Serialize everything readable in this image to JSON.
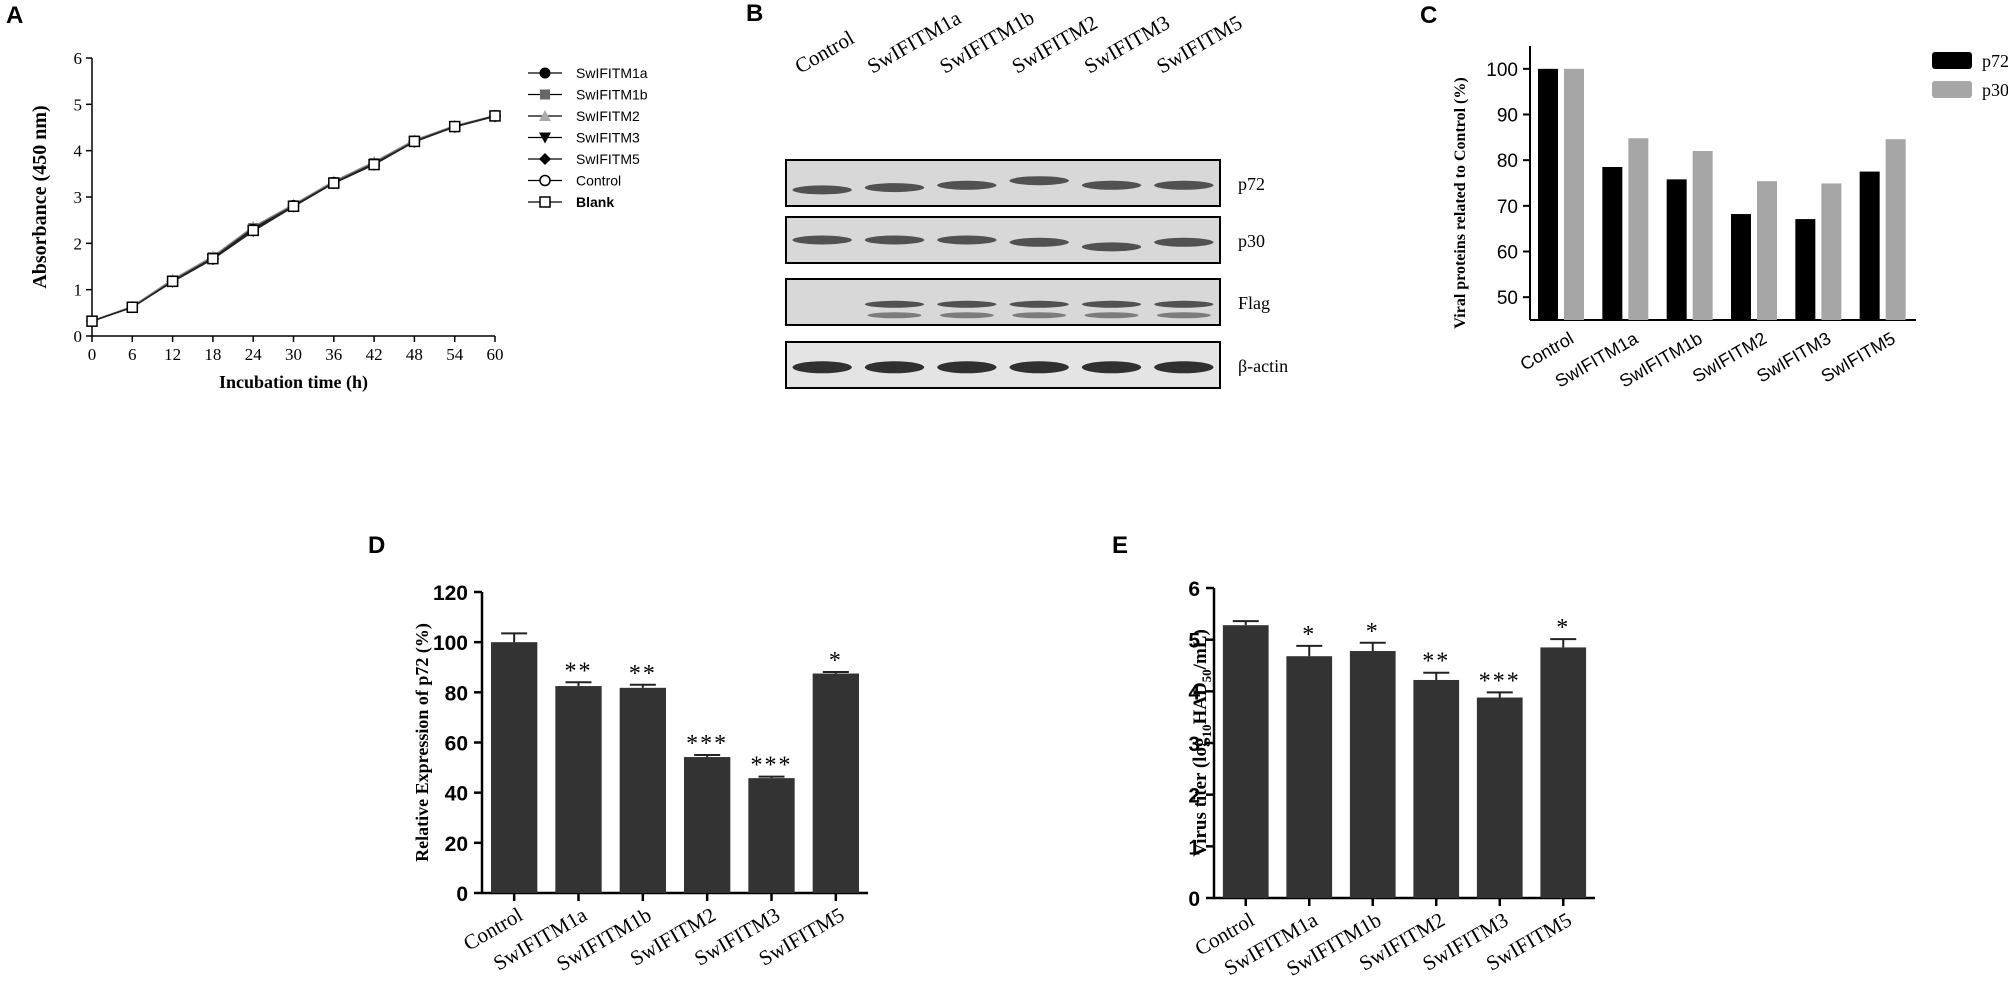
{
  "panel_labels": [
    "A",
    "B",
    "C",
    "D",
    "E"
  ],
  "chart_data": [
    {
      "panel": "A",
      "type": "line",
      "title": "",
      "xlabel": "Incubation time (h)",
      "ylabel": "Absorbance (450 nm)",
      "xlim": [
        0,
        60
      ],
      "ylim": [
        0,
        6
      ],
      "x_ticks": [
        0,
        6,
        12,
        18,
        24,
        30,
        36,
        42,
        48,
        54,
        60
      ],
      "y_ticks": [
        0,
        1,
        2,
        3,
        4,
        5,
        6
      ],
      "x": [
        0,
        6,
        12,
        18,
        24,
        30,
        36,
        42,
        48,
        54,
        60
      ],
      "legend_position": "right",
      "series": [
        {
          "name": "SwIFITM1a",
          "marker": "circle-filled",
          "color": "#000000",
          "values": [
            0.32,
            0.62,
            1.18,
            1.67,
            2.28,
            2.8,
            3.3,
            3.7,
            4.2,
            4.52,
            4.75
          ]
        },
        {
          "name": "SwIFITM1b",
          "marker": "square-filled",
          "color": "#666666",
          "values": [
            0.32,
            0.63,
            1.2,
            1.7,
            2.33,
            2.82,
            3.32,
            3.73,
            4.22,
            4.53,
            4.75
          ]
        },
        {
          "name": "SwIFITM2",
          "marker": "triangle-up",
          "color": "#aaaaaa",
          "values": [
            0.33,
            0.64,
            1.22,
            1.72,
            2.36,
            2.84,
            3.34,
            3.76,
            4.23,
            4.54,
            4.76
          ]
        },
        {
          "name": "SwIFITM3",
          "marker": "triangle-down",
          "color": "#000000",
          "values": [
            0.32,
            0.62,
            1.18,
            1.66,
            2.26,
            2.79,
            3.3,
            3.7,
            4.2,
            4.52,
            4.74
          ]
        },
        {
          "name": "SwIFITM5",
          "marker": "diamond",
          "color": "#000000",
          "values": [
            0.32,
            0.62,
            1.17,
            1.66,
            2.27,
            2.8,
            3.3,
            3.7,
            4.19,
            4.51,
            4.74
          ]
        },
        {
          "name": "Control",
          "marker": "circle-open",
          "color": "#000000",
          "values": [
            0.32,
            0.62,
            1.18,
            1.67,
            2.3,
            2.81,
            3.31,
            3.71,
            4.2,
            4.52,
            4.75
          ]
        },
        {
          "name": "Blank",
          "marker": "square-open",
          "color": "#000000",
          "values": [
            0.32,
            0.62,
            1.18,
            1.67,
            2.28,
            2.8,
            3.3,
            3.7,
            4.2,
            4.52,
            4.75
          ]
        }
      ]
    },
    {
      "panel": "C",
      "type": "bar",
      "title": "",
      "xlabel": "",
      "ylabel": "Viral proteins related to Control (%)",
      "ylim": [
        45,
        105
      ],
      "y_ticks": [
        50,
        60,
        70,
        80,
        90,
        100
      ],
      "categories": [
        "Control",
        "SwIFITM1a",
        "SwIFITM1b",
        "SwIFITM2",
        "SwIFITM3",
        "SwIFITM5"
      ],
      "legend_position": "top-right",
      "series": [
        {
          "name": "p72",
          "color": "#000000",
          "values": [
            100,
            78.5,
            75.8,
            68.2,
            67.1,
            77.5
          ]
        },
        {
          "name": "p30",
          "color": "#a6a6a6",
          "values": [
            100,
            84.8,
            82,
            75.4,
            74.9,
            84.6
          ]
        }
      ]
    },
    {
      "panel": "D",
      "type": "bar",
      "title": "",
      "xlabel": "",
      "ylabel": "Relative Expression of p72 (%)",
      "ylim": [
        0,
        120
      ],
      "y_ticks": [
        0,
        20,
        40,
        60,
        80,
        100,
        120
      ],
      "categories": [
        "Control",
        "SwIFITM1a",
        "SwIFITM1b",
        "SwIFITM2",
        "SwIFITM3",
        "SwIFITM5"
      ],
      "color": "#333333",
      "values": [
        100,
        82.5,
        81.8,
        54.2,
        45.8,
        87.5
      ],
      "errors": [
        3.5,
        1.5,
        1.2,
        0.8,
        0.6,
        0.6
      ],
      "significance": [
        "",
        "**",
        "**",
        "***",
        "***",
        "*"
      ]
    },
    {
      "panel": "E",
      "type": "bar",
      "title": "",
      "xlabel": "",
      "ylabel_main": "Virus titer (log",
      "ylabel_sub1": "10",
      "ylabel_mid": "HAD",
      "ylabel_sub2": "50",
      "ylabel_end": "/mL)",
      "ylim": [
        0,
        6
      ],
      "y_ticks": [
        0,
        1,
        2,
        3,
        4,
        5,
        6
      ],
      "categories": [
        "Control",
        "SwIFITM1a",
        "SwIFITM1b",
        "SwIFITM2",
        "SwIFITM3",
        "SwIFITM5"
      ],
      "color": "#333333",
      "values": [
        5.28,
        4.68,
        4.78,
        4.22,
        3.88,
        4.85
      ],
      "errors": [
        0.08,
        0.2,
        0.16,
        0.14,
        0.1,
        0.16
      ],
      "significance": [
        "",
        "*",
        "*",
        "**",
        "***",
        "*"
      ]
    }
  ],
  "blot": {
    "lanes": [
      "Control",
      "SwIFITM1a",
      "SwIFITM1b",
      "SwIFITM2",
      "SwIFITM3",
      "SwIFITM5"
    ],
    "rows": [
      {
        "label": "p72",
        "lanes_present": [
          1,
          1,
          1,
          1,
          1,
          1
        ]
      },
      {
        "label": "p30",
        "lanes_present": [
          1,
          1,
          1,
          1,
          1,
          1
        ]
      },
      {
        "label": "Flag",
        "lanes_present": [
          0,
          1,
          1,
          1,
          1,
          1
        ]
      },
      {
        "label": "β-actin",
        "lanes_present": [
          1,
          1,
          1,
          1,
          1,
          1
        ]
      }
    ]
  }
}
